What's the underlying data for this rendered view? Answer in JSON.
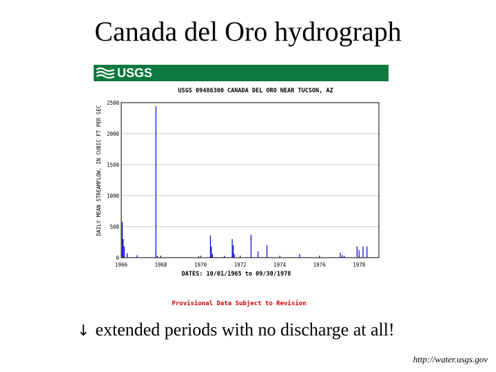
{
  "slide": {
    "title": "Canada del Oro hydrograph",
    "caption_icon": "down-arrow-icon",
    "caption_arrow": "↓",
    "caption": "extended periods with no discharge at all!",
    "source": "http://water.usgs.gov"
  },
  "figure": {
    "logo_text": "USGS",
    "brand_color": "#0c7a3e",
    "provisional_note": "Provisional Data Subject to Revision",
    "note_color": "#cc0000"
  },
  "chart_data": {
    "type": "bar",
    "title": "USGS 09486300 CANADA DEL ORO NEAR TUCSON, AZ",
    "ylabel": "DAILY MEAN STREAMFLOW, IN CUBIC FT PER SEC",
    "xlabel": "DATES: 10/01/1965 to 09/30/1978",
    "ylim": [
      0,
      2500
    ],
    "xlim": [
      1966,
      1979
    ],
    "yticks": [
      0,
      500,
      1000,
      1500,
      2000,
      2500
    ],
    "xticks": [
      "1966",
      "1968",
      "1970",
      "1972",
      "1974",
      "1976",
      "1978"
    ],
    "grid": true,
    "bar_color": "#0000cc",
    "x": [
      1966.05,
      1966.1,
      1966.15,
      1966.3,
      1966.8,
      1967.75,
      1967.82,
      1969.9,
      1970.5,
      1970.55,
      1970.6,
      1971.2,
      1971.6,
      1971.65,
      1971.7,
      1972.55,
      1972.9,
      1973.35,
      1975.0,
      1977.05,
      1977.15,
      1977.25,
      1977.9,
      1978.0,
      1978.2,
      1978.4
    ],
    "values": [
      580,
      300,
      180,
      70,
      40,
      2440,
      30,
      20,
      360,
      180,
      60,
      30,
      300,
      200,
      60,
      370,
      100,
      200,
      60,
      80,
      40,
      30,
      180,
      120,
      180,
      180
    ]
  }
}
